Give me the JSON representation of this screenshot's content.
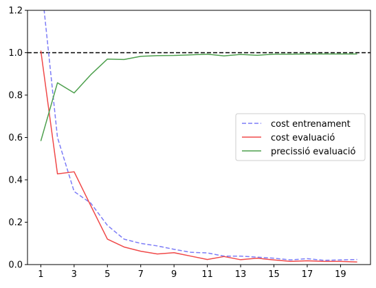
{
  "chart_data": {
    "type": "line",
    "xlim": [
      0.2,
      20.8
    ],
    "ylim": [
      0.0,
      1.2
    ],
    "x_ticks": [
      "1",
      "3",
      "5",
      "7",
      "9",
      "11",
      "13",
      "15",
      "17",
      "19"
    ],
    "y_ticks": [
      "0.0",
      "0.2",
      "0.4",
      "0.6",
      "0.8",
      "1.0",
      "1.2"
    ],
    "grid": false,
    "legend_position": "center-right",
    "reference_line": {
      "y": 1.0,
      "style": "dashed",
      "color": "#000000"
    },
    "series": [
      {
        "name": "cost entrenament",
        "style": "dashed",
        "color": "#7b7bf7",
        "x": [
          1,
          2,
          3,
          4,
          5,
          6,
          7,
          8,
          9,
          10,
          11,
          12,
          13,
          14,
          15,
          16,
          17,
          18,
          19,
          20
        ],
        "y": [
          1.35,
          0.6,
          0.345,
          0.29,
          0.185,
          0.12,
          0.1,
          0.088,
          0.072,
          0.058,
          0.055,
          0.04,
          0.04,
          0.035,
          0.03,
          0.022,
          0.028,
          0.02,
          0.022,
          0.024
        ]
      },
      {
        "name": "cost evaluació",
        "style": "solid",
        "color": "#f04848",
        "x": [
          1,
          2,
          3,
          4,
          5,
          6,
          7,
          8,
          9,
          10,
          11,
          12,
          13,
          14,
          15,
          16,
          17,
          18,
          19,
          20
        ],
        "y": [
          1.01,
          0.428,
          0.438,
          0.278,
          0.12,
          0.083,
          0.063,
          0.05,
          0.056,
          0.04,
          0.024,
          0.038,
          0.023,
          0.03,
          0.022,
          0.015,
          0.018,
          0.015,
          0.015,
          0.012
        ]
      },
      {
        "name": "precissió evaluació",
        "style": "solid",
        "color": "#4c9f4c",
        "x": [
          1,
          2,
          3,
          4,
          5,
          6,
          7,
          8,
          9,
          10,
          11,
          12,
          13,
          14,
          15,
          16,
          17,
          18,
          19,
          20
        ],
        "y": [
          0.583,
          0.858,
          0.81,
          0.896,
          0.97,
          0.968,
          0.983,
          0.986,
          0.987,
          0.99,
          0.993,
          0.985,
          0.992,
          0.988,
          0.993,
          0.993,
          0.994,
          0.994,
          0.994,
          0.994
        ]
      }
    ]
  }
}
